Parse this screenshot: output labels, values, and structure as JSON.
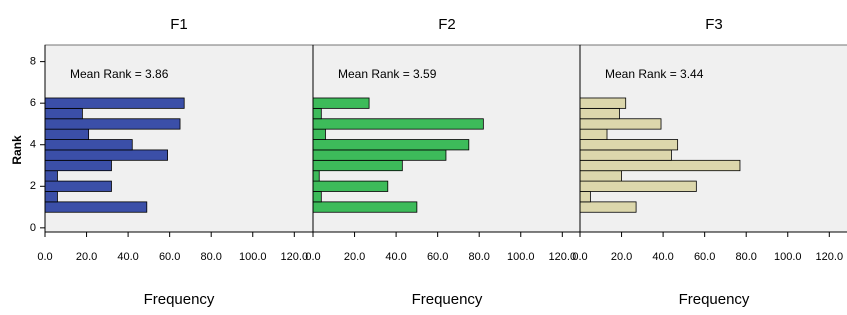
{
  "chart_data": [
    {
      "type": "bar",
      "orientation": "horizontal",
      "title": "F1",
      "annotation": "Mean Rank = 3.86",
      "x_label": "Frequency",
      "y_label": "Rank",
      "y": [
        1,
        1.5,
        2,
        2.5,
        3,
        3.5,
        4,
        4.5,
        5,
        5.5,
        6
      ],
      "values": [
        49,
        6,
        32,
        6,
        32,
        59,
        42,
        21,
        65,
        18,
        67
      ],
      "color": "#3b4fa8",
      "xlim": [
        0,
        129
      ],
      "xticks": [
        {
          "value": 0,
          "label": "0.0"
        },
        {
          "value": 20,
          "label": "20.0"
        },
        {
          "value": 40,
          "label": "40.0"
        },
        {
          "value": 60,
          "label": "60.0"
        },
        {
          "value": 80,
          "label": "80.0"
        },
        {
          "value": 100,
          "label": "100.0"
        },
        {
          "value": 120,
          "label": "120.0"
        }
      ],
      "ylim": [
        -0.2,
        8.8
      ],
      "yticks": [
        0,
        2,
        4,
        6,
        8
      ]
    },
    {
      "type": "bar",
      "orientation": "horizontal",
      "title": "F2",
      "annotation": "Mean Rank = 3.59",
      "x_label": "Frequency",
      "y": [
        1,
        1.5,
        2,
        2.5,
        3,
        3.5,
        4,
        4.5,
        5,
        5.5,
        6
      ],
      "values": [
        50,
        4,
        36,
        3,
        43,
        64,
        75,
        6,
        82,
        4,
        27
      ],
      "color": "#3dbb5a",
      "xlim": [
        0,
        129
      ],
      "xticks": [
        {
          "value": 0,
          "label": "0.0"
        },
        {
          "value": 20,
          "label": "20.0"
        },
        {
          "value": 40,
          "label": "40.0"
        },
        {
          "value": 60,
          "label": "60.0"
        },
        {
          "value": 80,
          "label": "80.0"
        },
        {
          "value": 100,
          "label": "100.0"
        },
        {
          "value": 120,
          "label": "120.0"
        }
      ],
      "ylim": [
        -0.2,
        8.8
      ]
    },
    {
      "type": "bar",
      "orientation": "horizontal",
      "title": "F3",
      "annotation": "Mean Rank = 3.44",
      "x_label": "Frequency",
      "y": [
        1,
        1.5,
        2,
        2.5,
        3,
        3.5,
        4,
        4.5,
        5,
        5.5,
        6
      ],
      "values": [
        27,
        5,
        56,
        20,
        77,
        44,
        47,
        13,
        39,
        19,
        22
      ],
      "color": "#dcd7ac",
      "xlim": [
        0,
        129
      ],
      "xticks": [
        {
          "value": 0,
          "label": "0.0"
        },
        {
          "value": 20,
          "label": "20.0"
        },
        {
          "value": 40,
          "label": "40.0"
        },
        {
          "value": 60,
          "label": "60.0"
        },
        {
          "value": 80,
          "label": "80.0"
        },
        {
          "value": 100,
          "label": "100.0"
        },
        {
          "value": 120,
          "label": "120.0"
        }
      ],
      "ylim": [
        -0.2,
        8.8
      ]
    }
  ]
}
